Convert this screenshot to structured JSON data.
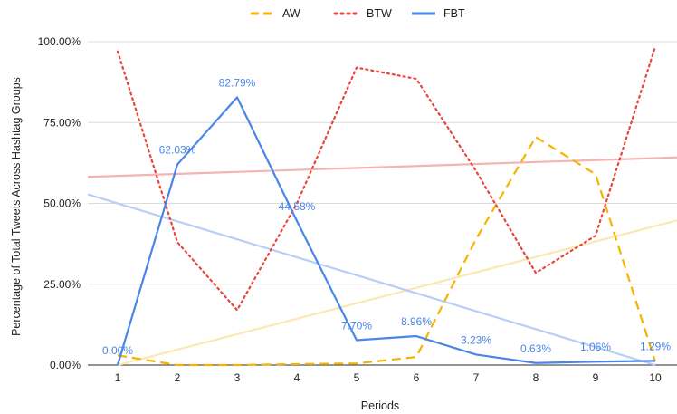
{
  "chart_data": {
    "type": "line",
    "xlabel": "Periods",
    "ylabel": "Percentage of Total Tweets Across Hashtag Groups",
    "categories": [
      "1",
      "2",
      "3",
      "4",
      "5",
      "6",
      "7",
      "8",
      "9",
      "10"
    ],
    "ylim": [
      0,
      100
    ],
    "y_ticks": [
      "0.00%",
      "25.00%",
      "50.00%",
      "75.00%",
      "100.00%"
    ],
    "grid": true,
    "legend_position": "top-center",
    "series": [
      {
        "name": "AW",
        "style": "dashed",
        "color": "#f4b400",
        "values": [
          3,
          0,
          0,
          0.3,
          0.5,
          2.5,
          39,
          70.5,
          59,
          1
        ]
      },
      {
        "name": "BTW",
        "style": "dotted",
        "color": "#e8453c",
        "values": [
          97,
          38,
          17,
          50,
          92,
          88.5,
          60,
          28.5,
          40,
          98.5
        ]
      },
      {
        "name": "FBT",
        "style": "solid",
        "color": "#4a86e8",
        "values": [
          0.0,
          62.03,
          82.79,
          44.58,
          7.7,
          8.96,
          3.23,
          0.63,
          1.06,
          1.29
        ],
        "data_labels": [
          "0.00%",
          "62.03%",
          "82.79%",
          "44.58%",
          "7.70%",
          "8.96%",
          "3.23%",
          "0.63%",
          "1.06%",
          "1.29%"
        ]
      }
    ],
    "trendlines": [
      {
        "series": "AW",
        "color": "#fce8b2",
        "from": [
          1,
          0
        ],
        "to": [
          10,
          43
        ]
      },
      {
        "series": "BTW",
        "color": "#f4b5b0",
        "from": [
          1,
          58.5
        ],
        "to": [
          10,
          64
        ]
      },
      {
        "series": "FBT",
        "color": "#b7cff5",
        "from": [
          1,
          50
        ],
        "to": [
          10,
          0
        ]
      }
    ]
  }
}
